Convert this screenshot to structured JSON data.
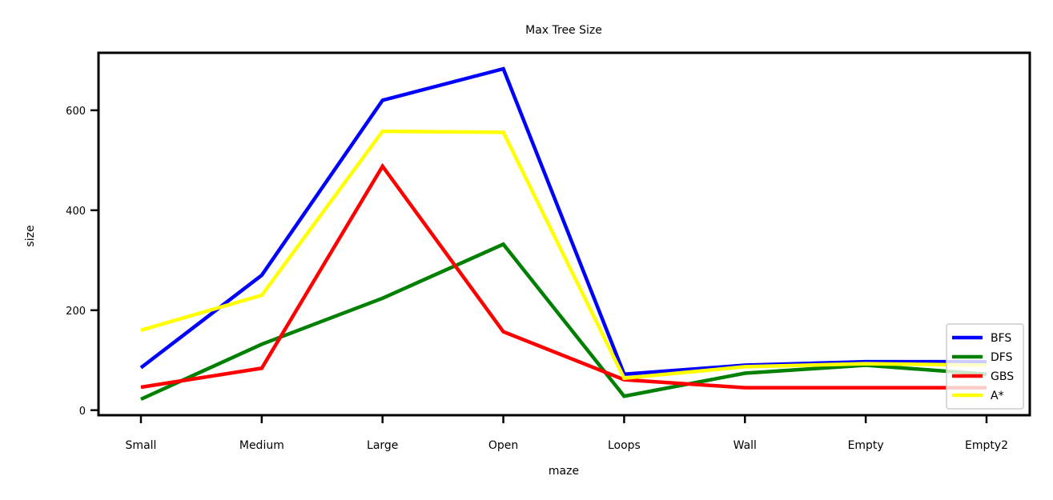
{
  "chart_data": {
    "type": "line",
    "title": "Max Tree Size",
    "xlabel": "maze",
    "ylabel": "size",
    "categories": [
      "Small",
      "Medium",
      "Large",
      "Open",
      "Loops",
      "Wall",
      "Empty",
      "Empty2"
    ],
    "ylim": [
      -10,
      715
    ],
    "yticks": [
      0,
      200,
      400,
      600
    ],
    "grid": false,
    "legend_position": "bottom-right",
    "series": [
      {
        "name": "BFS",
        "color": "#0000ff",
        "values": [
          85,
          270,
          620,
          683,
          72,
          90,
          97,
          97
        ]
      },
      {
        "name": "DFS",
        "color": "#008000",
        "values": [
          22,
          132,
          224,
          332,
          28,
          74,
          90,
          72
        ]
      },
      {
        "name": "GBS",
        "color": "#ff0000",
        "values": [
          46,
          84,
          488,
          157,
          61,
          45,
          45,
          45
        ]
      },
      {
        "name": "A*",
        "color": "#ffff00",
        "values": [
          160,
          230,
          558,
          556,
          64,
          87,
          93,
          90
        ]
      }
    ]
  }
}
